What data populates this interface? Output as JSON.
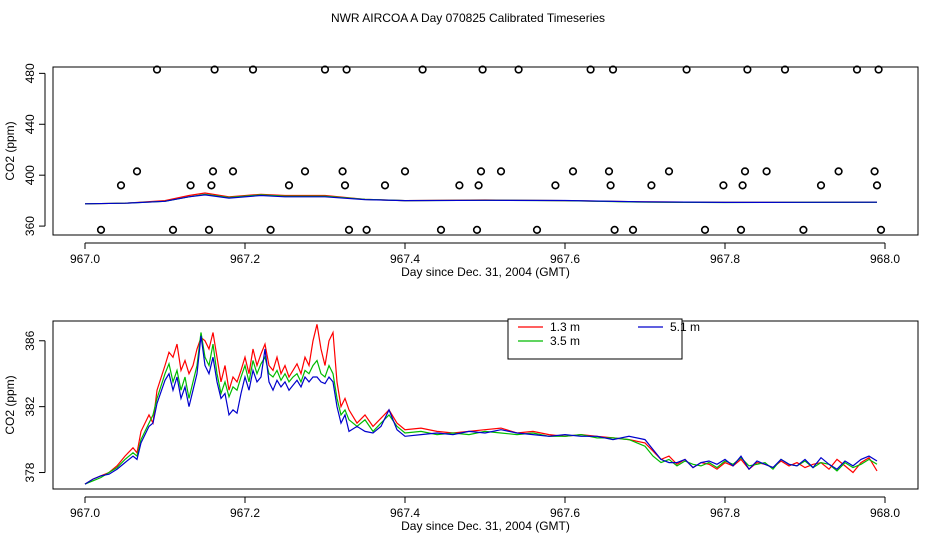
{
  "title": "NWR AIRCOA A  Day 070825  Calibrated Timeseries",
  "chart_data": [
    {
      "type": "scatter",
      "xlabel": "Day since Dec. 31, 2004 (GMT)",
      "ylabel": "CO2 (ppm)",
      "xlim": [
        967.0,
        968.0
      ],
      "ylim": [
        353,
        485
      ],
      "xticks": [
        967.0,
        967.2,
        967.4,
        967.6,
        967.8,
        968.0
      ],
      "xtick_labels": [
        "967.0",
        "967.2",
        "967.4",
        "967.6",
        "967.8",
        "968.0"
      ],
      "yticks": [
        360,
        400,
        440,
        480
      ],
      "ytick_labels": [
        "360",
        "400",
        "440",
        "480"
      ],
      "points": {
        "marker": "open-circle",
        "x": [
          967.02,
          967.045,
          967.065,
          967.09,
          967.11,
          967.132,
          967.155,
          967.158,
          967.16,
          967.162,
          967.185,
          967.21,
          967.232,
          967.255,
          967.275,
          967.3,
          967.322,
          967.325,
          967.327,
          967.33,
          967.352,
          967.375,
          967.4,
          967.422,
          967.445,
          967.468,
          967.49,
          967.492,
          967.495,
          967.497,
          967.52,
          967.542,
          967.565,
          967.588,
          967.61,
          967.632,
          967.655,
          967.657,
          967.66,
          967.662,
          967.685,
          967.708,
          967.73,
          967.752,
          967.775,
          967.798,
          967.82,
          967.822,
          967.825,
          967.828,
          967.852,
          967.875,
          967.898,
          967.92,
          967.942,
          967.965,
          967.987,
          967.99,
          967.992,
          967.995
        ],
        "y": [
          357,
          392,
          403,
          483,
          357,
          392,
          357,
          392,
          403,
          483,
          403,
          483,
          357,
          392,
          403,
          483,
          403,
          392,
          483,
          357,
          357,
          392,
          403,
          483,
          357,
          392,
          357,
          392,
          403,
          483,
          403,
          483,
          357,
          392,
          403,
          483,
          403,
          392,
          483,
          357,
          357,
          392,
          403,
          483,
          357,
          392,
          357,
          392,
          403,
          483,
          403,
          483,
          357,
          392,
          403,
          483,
          403,
          392,
          483,
          357
        ]
      },
      "series": [
        {
          "name": "1.3 m",
          "color": "#ff0000",
          "x": [
            967.0,
            967.05,
            967.1,
            967.13,
            967.15,
            967.18,
            967.22,
            967.25,
            967.3,
            967.35,
            967.4,
            967.5,
            967.6,
            967.7,
            967.8,
            967.9,
            967.99
          ],
          "y": [
            377.5,
            378,
            380,
            384,
            386,
            383,
            385,
            384,
            384,
            381,
            380,
            380.5,
            380,
            379,
            378.6,
            378.7,
            378.8
          ]
        },
        {
          "name": "3.5 m",
          "color": "#00cc00",
          "x": [
            967.0,
            967.05,
            967.1,
            967.13,
            967.15,
            967.18,
            967.22,
            967.25,
            967.3,
            967.35,
            967.4,
            967.5,
            967.6,
            967.7,
            967.8,
            967.9,
            967.99
          ],
          "y": [
            377.5,
            378,
            379.5,
            383,
            385,
            382.5,
            384.5,
            383.5,
            383.5,
            381,
            380,
            380.3,
            380,
            378.8,
            378.5,
            378.6,
            378.7
          ]
        },
        {
          "name": "5.1 m",
          "color": "#0000cc",
          "x": [
            967.0,
            967.05,
            967.1,
            967.13,
            967.15,
            967.18,
            967.22,
            967.25,
            967.3,
            967.35,
            967.4,
            967.5,
            967.6,
            967.7,
            967.8,
            967.9,
            967.99
          ],
          "y": [
            377.5,
            378,
            379.5,
            383,
            384.5,
            382,
            384,
            383,
            383,
            380.8,
            380,
            380.3,
            380.1,
            379,
            378.6,
            378.7,
            378.8
          ]
        }
      ]
    },
    {
      "type": "line",
      "xlabel": "Day since Dec. 31, 2004 (GMT)",
      "ylabel": "CO2 (ppm)",
      "xlim": [
        967.0,
        968.0
      ],
      "ylim": [
        377.0,
        387.2
      ],
      "xticks": [
        967.0,
        967.2,
        967.4,
        967.6,
        967.8,
        968.0
      ],
      "xtick_labels": [
        "967.0",
        "967.2",
        "967.4",
        "967.6",
        "967.8",
        "968.0"
      ],
      "yticks": [
        378,
        382,
        386
      ],
      "ytick_labels": [
        "378",
        "382",
        "386"
      ],
      "legend": {
        "position": "top-center",
        "columns": 2
      },
      "series": [
        {
          "name": "1.3 m",
          "color": "#ff0000",
          "x": [
            967.0,
            967.01,
            967.02,
            967.03,
            967.04,
            967.05,
            967.06,
            967.065,
            967.07,
            967.08,
            967.085,
            967.09,
            967.1,
            967.105,
            967.11,
            967.115,
            967.12,
            967.125,
            967.13,
            967.135,
            967.14,
            967.145,
            967.15,
            967.155,
            967.16,
            967.165,
            967.17,
            967.175,
            967.18,
            967.185,
            967.19,
            967.195,
            967.2,
            967.205,
            967.21,
            967.215,
            967.22,
            967.225,
            967.23,
            967.235,
            967.24,
            967.245,
            967.25,
            967.255,
            967.26,
            967.265,
            967.27,
            967.275,
            967.28,
            967.285,
            967.29,
            967.295,
            967.3,
            967.305,
            967.31,
            967.315,
            967.32,
            967.325,
            967.33,
            967.34,
            967.35,
            967.36,
            967.37,
            967.38,
            967.39,
            967.4,
            967.42,
            967.44,
            967.46,
            967.48,
            967.5,
            967.52,
            967.54,
            967.56,
            967.58,
            967.6,
            967.62,
            967.64,
            967.66,
            967.68,
            967.7,
            967.71,
            967.72,
            967.73,
            967.74,
            967.75,
            967.76,
            967.77,
            967.78,
            967.79,
            967.8,
            967.81,
            967.82,
            967.83,
            967.84,
            967.85,
            967.86,
            967.87,
            967.88,
            967.89,
            967.9,
            967.91,
            967.92,
            967.93,
            967.94,
            967.95,
            967.96,
            967.97,
            967.98,
            967.99
          ],
          "y": [
            377.3,
            377.6,
            377.8,
            378.0,
            378.4,
            379.0,
            379.5,
            379.2,
            380.5,
            381.5,
            381.0,
            383.0,
            384.5,
            385.3,
            385.0,
            385.8,
            384.2,
            384.8,
            384.0,
            384.5,
            385.5,
            386.2,
            386.0,
            385.5,
            386.5,
            385.0,
            383.5,
            384.5,
            383.0,
            383.8,
            383.5,
            384.2,
            385.0,
            384.0,
            385.5,
            384.5,
            385.2,
            385.8,
            384.5,
            384.2,
            385.0,
            384.0,
            384.5,
            383.8,
            384.2,
            384.6,
            384.0,
            385.0,
            384.5,
            386.0,
            387.0,
            385.5,
            384.5,
            386.0,
            386.5,
            383.5,
            382.0,
            382.5,
            381.8,
            381.0,
            381.5,
            380.8,
            381.3,
            381.8,
            381.0,
            380.6,
            380.7,
            380.5,
            380.4,
            380.5,
            380.6,
            380.7,
            380.4,
            380.5,
            380.3,
            380.2,
            380.3,
            380.2,
            380.1,
            380.0,
            379.8,
            379.3,
            378.8,
            379.0,
            378.5,
            378.8,
            378.3,
            378.6,
            378.5,
            378.2,
            378.6,
            378.4,
            378.8,
            378.2,
            378.6,
            378.5,
            378.3,
            378.7,
            378.4,
            378.6,
            378.3,
            378.5,
            378.6,
            378.2,
            378.8,
            378.4,
            378.0,
            378.6,
            378.9,
            378.1
          ]
        },
        {
          "name": "3.5 m",
          "color": "#00bb00",
          "x": [
            967.0,
            967.01,
            967.02,
            967.03,
            967.04,
            967.05,
            967.06,
            967.065,
            967.07,
            967.08,
            967.085,
            967.09,
            967.1,
            967.105,
            967.11,
            967.115,
            967.12,
            967.125,
            967.13,
            967.135,
            967.14,
            967.145,
            967.15,
            967.155,
            967.16,
            967.165,
            967.17,
            967.175,
            967.18,
            967.185,
            967.19,
            967.195,
            967.2,
            967.205,
            967.21,
            967.215,
            967.22,
            967.225,
            967.23,
            967.235,
            967.24,
            967.245,
            967.25,
            967.255,
            967.26,
            967.265,
            967.27,
            967.275,
            967.28,
            967.285,
            967.29,
            967.295,
            967.3,
            967.305,
            967.31,
            967.315,
            967.32,
            967.325,
            967.33,
            967.34,
            967.35,
            967.36,
            967.37,
            967.38,
            967.39,
            967.4,
            967.42,
            967.44,
            967.46,
            967.48,
            967.5,
            967.52,
            967.54,
            967.56,
            967.58,
            967.6,
            967.62,
            967.64,
            967.66,
            967.68,
            967.7,
            967.71,
            967.72,
            967.73,
            967.74,
            967.75,
            967.76,
            967.77,
            967.78,
            967.79,
            967.8,
            967.81,
            967.82,
            967.83,
            967.84,
            967.85,
            967.86,
            967.87,
            967.88,
            967.89,
            967.9,
            967.91,
            967.92,
            967.93,
            967.94,
            967.95,
            967.96,
            967.97,
            967.98,
            967.99
          ],
          "y": [
            377.3,
            377.5,
            377.7,
            378.0,
            378.3,
            378.8,
            379.2,
            379.0,
            380.0,
            381.0,
            381.5,
            382.5,
            384.0,
            384.6,
            383.5,
            384.2,
            383.0,
            383.8,
            382.5,
            383.5,
            384.5,
            386.5,
            385.0,
            384.5,
            385.8,
            384.0,
            382.8,
            383.5,
            382.6,
            383.2,
            383.0,
            383.8,
            384.5,
            383.5,
            384.8,
            384.0,
            384.6,
            385.0,
            384.0,
            383.8,
            384.2,
            383.6,
            384.0,
            383.5,
            383.8,
            384.0,
            383.5,
            384.2,
            384.0,
            384.5,
            384.8,
            384.0,
            383.8,
            384.5,
            384.0,
            382.5,
            381.5,
            381.8,
            381.2,
            380.8,
            381.2,
            380.5,
            381.0,
            381.5,
            380.8,
            380.4,
            380.5,
            380.3,
            380.4,
            380.3,
            380.5,
            380.4,
            380.3,
            380.4,
            380.2,
            380.2,
            380.3,
            380.1,
            380.1,
            380.0,
            379.6,
            379.0,
            378.6,
            378.8,
            378.4,
            378.7,
            378.5,
            378.4,
            378.6,
            378.3,
            378.7,
            378.5,
            378.9,
            378.4,
            378.5,
            378.6,
            378.2,
            378.8,
            378.5,
            378.4,
            378.7,
            378.3,
            378.6,
            378.5,
            378.1,
            378.6,
            378.3,
            378.5,
            378.8,
            378.5
          ]
        },
        {
          "name": "5.1 m",
          "color": "#0000cc",
          "x": [
            967.0,
            967.01,
            967.02,
            967.03,
            967.04,
            967.05,
            967.06,
            967.065,
            967.07,
            967.08,
            967.085,
            967.09,
            967.1,
            967.105,
            967.11,
            967.115,
            967.12,
            967.125,
            967.13,
            967.135,
            967.14,
            967.145,
            967.15,
            967.155,
            967.16,
            967.165,
            967.17,
            967.175,
            967.18,
            967.185,
            967.19,
            967.195,
            967.2,
            967.205,
            967.21,
            967.215,
            967.22,
            967.225,
            967.23,
            967.235,
            967.24,
            967.245,
            967.25,
            967.255,
            967.26,
            967.265,
            967.27,
            967.275,
            967.28,
            967.285,
            967.29,
            967.295,
            967.3,
            967.305,
            967.31,
            967.315,
            967.32,
            967.325,
            967.33,
            967.34,
            967.35,
            967.36,
            967.37,
            967.38,
            967.39,
            967.4,
            967.42,
            967.44,
            967.46,
            967.48,
            967.5,
            967.52,
            967.54,
            967.56,
            967.58,
            967.6,
            967.62,
            967.64,
            967.66,
            967.68,
            967.7,
            967.71,
            967.72,
            967.73,
            967.74,
            967.75,
            967.76,
            967.77,
            967.78,
            967.79,
            967.8,
            967.81,
            967.82,
            967.83,
            967.84,
            967.85,
            967.86,
            967.87,
            967.88,
            967.89,
            967.9,
            967.91,
            967.92,
            967.93,
            967.94,
            967.95,
            967.96,
            967.97,
            967.98,
            967.99
          ],
          "y": [
            377.3,
            377.6,
            377.8,
            377.9,
            378.2,
            378.6,
            379.0,
            378.8,
            379.8,
            380.8,
            381.0,
            382.2,
            383.6,
            384.0,
            383.0,
            383.8,
            382.5,
            383.2,
            382.0,
            383.0,
            384.0,
            386.3,
            384.5,
            384.0,
            385.0,
            383.5,
            382.5,
            382.8,
            381.5,
            381.8,
            381.6,
            382.8,
            383.8,
            383.0,
            384.2,
            383.5,
            383.8,
            385.5,
            383.5,
            383.0,
            383.6,
            383.2,
            383.5,
            383.0,
            383.3,
            383.6,
            383.2,
            383.8,
            383.5,
            383.8,
            383.8,
            383.5,
            383.4,
            383.8,
            383.5,
            382.0,
            381.0,
            381.5,
            380.5,
            380.8,
            380.5,
            380.4,
            380.8,
            381.8,
            380.6,
            380.2,
            380.3,
            380.4,
            380.3,
            380.5,
            380.4,
            380.6,
            380.4,
            380.3,
            380.2,
            380.3,
            380.2,
            380.2,
            380.0,
            380.2,
            380.0,
            379.4,
            378.8,
            378.6,
            378.6,
            378.8,
            378.3,
            378.6,
            378.7,
            378.5,
            378.8,
            378.4,
            379.0,
            378.2,
            378.7,
            378.5,
            378.3,
            378.8,
            378.5,
            378.4,
            378.8,
            378.3,
            378.9,
            378.5,
            378.2,
            378.7,
            378.4,
            378.8,
            379.0,
            378.7
          ]
        }
      ]
    }
  ]
}
